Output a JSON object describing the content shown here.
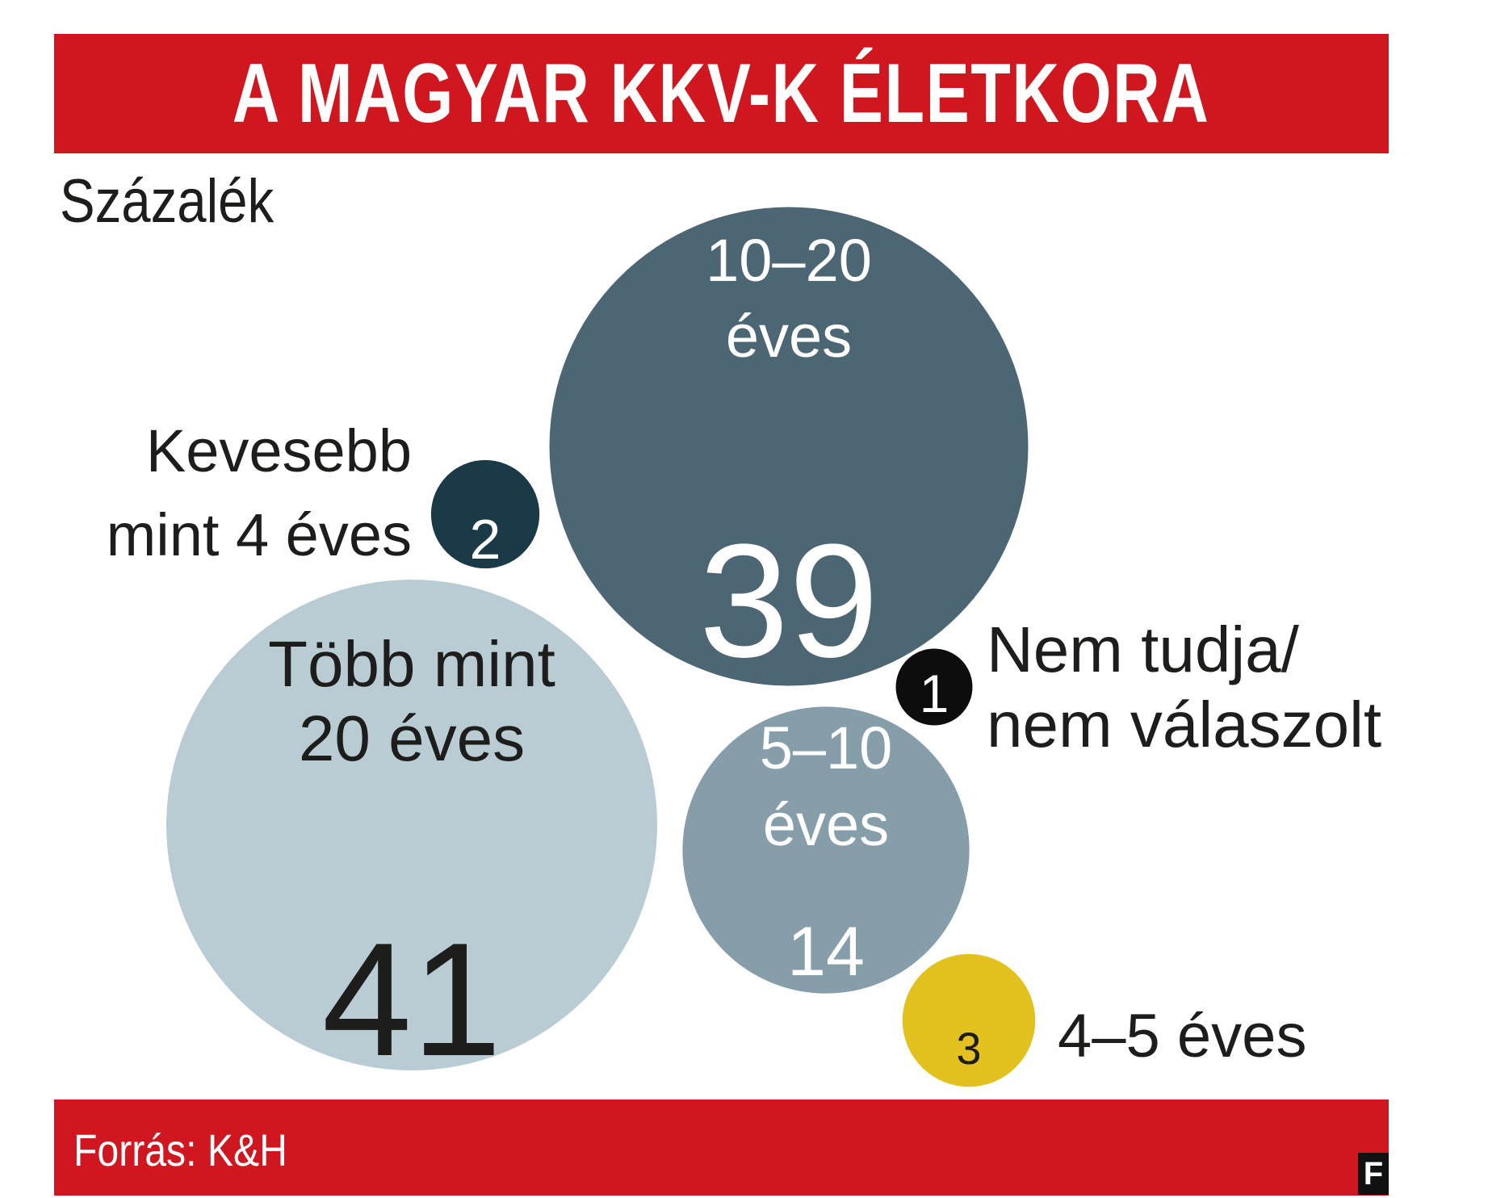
{
  "header": {
    "title": "A MAGYAR KKV-K ÉLETKORA"
  },
  "unit_label": "Százalék",
  "footer": {
    "source": "Forrás: K&H",
    "brand": "F"
  },
  "chart_data": {
    "type": "bubble",
    "title": "A MAGYAR KKV-K ÉLETKORA",
    "unit": "Százalék",
    "series": [
      {
        "name": "Kevesebb mint 4 éves",
        "label_lines": [
          "Kevesebb",
          "mint 4 éves"
        ],
        "value": 2,
        "color": "#1b3a47"
      },
      {
        "name": "10–20 éves",
        "label_lines": [
          "10–20",
          "éves"
        ],
        "value": 39,
        "color": "#4d6674"
      },
      {
        "name": "Több mint 20 éves",
        "label_lines": [
          "Több mint",
          "20 éves"
        ],
        "value": 41,
        "color": "#b9cbd3"
      },
      {
        "name": "5–10 éves",
        "label_lines": [
          "5–10",
          "éves"
        ],
        "value": 14,
        "color": "#869daa"
      },
      {
        "name": "Nem tudja/nem válaszolt",
        "label_lines": [
          "Nem tudja/",
          "nem válaszolt"
        ],
        "value": 1,
        "color": "#0d0d0d"
      },
      {
        "name": "4–5 éves",
        "label_lines": [
          "4–5 éves"
        ],
        "value": 3,
        "color": "#e3c21f"
      }
    ],
    "source": "Forrás: K&H"
  }
}
